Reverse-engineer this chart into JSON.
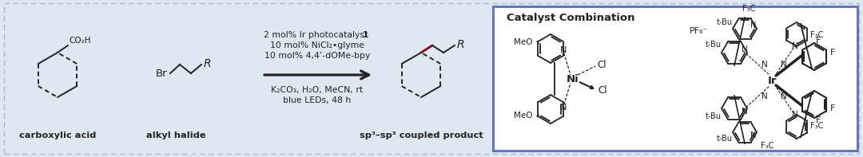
{
  "bg_color": "#dde8f0",
  "outer_border_color": "#aabbcc",
  "inner_box_color": "#6677bb",
  "fig_width": 10.8,
  "fig_height": 1.97,
  "cond_line1a": "2 mol% Ir photocatalyst ",
  "cond_line1b": "1",
  "cond_line2": "10 mol% NiCl₂•glyme",
  "cond_line3": "10 mol% 4,4’-dOMe-bpy",
  "cond_line4": "K₂CO₃, H₂O, MeCN, rt",
  "cond_line5": "blue LEDs, 48 h",
  "label_ca": "carboxylic acid",
  "label_ah": "alkyl halide",
  "label_prod": "sp³–sp³ coupled product",
  "cat_title": "Catalyst Combination",
  "dark": "#222222",
  "red": "#8b0020",
  "inner_bg": "#ffffff"
}
